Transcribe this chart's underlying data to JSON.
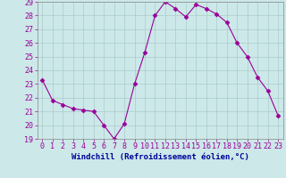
{
  "x": [
    0,
    1,
    2,
    3,
    4,
    5,
    6,
    7,
    8,
    9,
    10,
    11,
    12,
    13,
    14,
    15,
    16,
    17,
    18,
    19,
    20,
    21,
    22,
    23
  ],
  "y": [
    23.3,
    21.8,
    21.5,
    21.2,
    21.1,
    21.0,
    20.0,
    19.0,
    20.1,
    23.0,
    25.3,
    28.0,
    29.0,
    28.5,
    27.9,
    28.8,
    28.5,
    28.1,
    27.5,
    26.0,
    25.0,
    23.5,
    22.5,
    20.7
  ],
  "line_color": "#990099",
  "marker": "D",
  "marker_size": 2.5,
  "bg_color": "#cce8e8",
  "grid_color": "#aacccc",
  "xlabel": "Windchill (Refroidissement éolien,°C)",
  "xlabel_color": "#000099",
  "xlabel_fontsize": 6.5,
  "tick_label_color": "#990099",
  "tick_fontsize": 6,
  "ylim": [
    19,
    29
  ],
  "yticks": [
    19,
    20,
    21,
    22,
    23,
    24,
    25,
    26,
    27,
    28,
    29
  ],
  "xticks": [
    0,
    1,
    2,
    3,
    4,
    5,
    6,
    7,
    8,
    9,
    10,
    11,
    12,
    13,
    14,
    15,
    16,
    17,
    18,
    19,
    20,
    21,
    22,
    23
  ],
  "xlim_left": -0.5,
  "xlim_right": 23.5
}
